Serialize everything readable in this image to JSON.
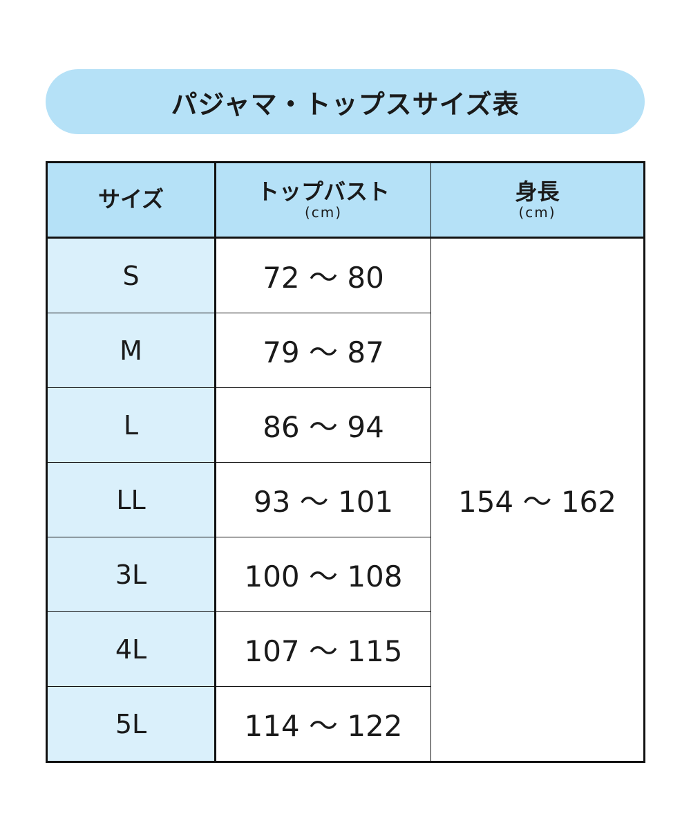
{
  "title": "パジャマ・トップスサイズ表",
  "colors": {
    "header_bg": "#b5e1f7",
    "size_col_bg": "#daf0fb",
    "border": "#111111"
  },
  "table": {
    "headers": [
      {
        "label": "サイズ",
        "unit": ""
      },
      {
        "label": "トップバスト",
        "unit": "(cm)"
      },
      {
        "label": "身長",
        "unit": "(cm)"
      }
    ],
    "rows": [
      {
        "size": "S",
        "bust": "72 〜 80"
      },
      {
        "size": "M",
        "bust": "79 〜 87"
      },
      {
        "size": "L",
        "bust": "86 〜 94"
      },
      {
        "size": "LL",
        "bust": "93 〜 101"
      },
      {
        "size": "3L",
        "bust": "100 〜 108"
      },
      {
        "size": "4L",
        "bust": "107 〜 115"
      },
      {
        "size": "5L",
        "bust": "114 〜 122"
      }
    ],
    "height_all": "154 〜 162"
  }
}
